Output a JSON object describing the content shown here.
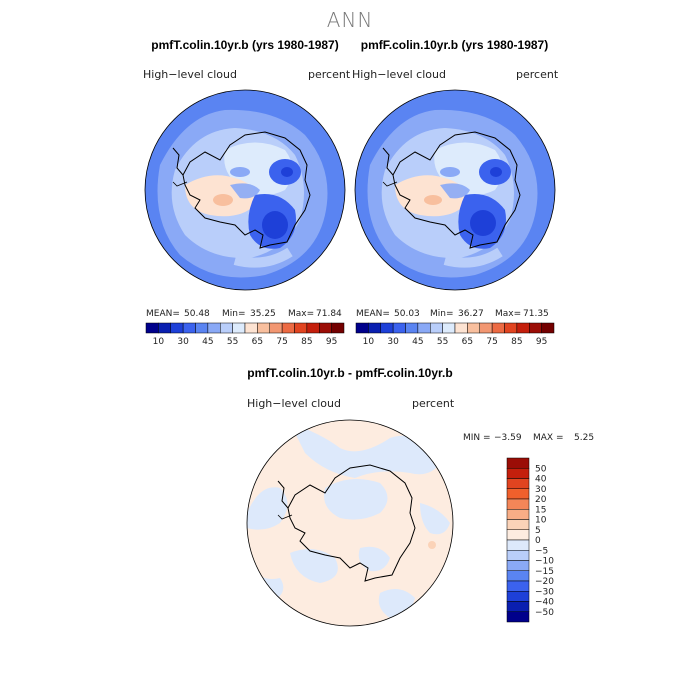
{
  "title": "ANN",
  "panels": [
    {
      "subtitle": "pmfT.colin.10yr.b (yrs 1980-1987)",
      "left_label": "High−level  cloud",
      "right_label": "percent",
      "mean_label": "MEAN=",
      "mean": "50.48",
      "min_label": "Min=",
      "min": "35.25",
      "max_label": "Max=",
      "max": "71.84"
    },
    {
      "subtitle": "pmfF.colin.10yr.b (yrs 1980-1987)",
      "left_label": "High−level  cloud",
      "right_label": "percent",
      "mean_label": "MEAN=",
      "mean": "50.03",
      "min_label": "Min=",
      "min": "36.27",
      "max_label": "Max=",
      "max": "71.35"
    }
  ],
  "diff_panel": {
    "subtitle": "pmfT.colin.10yr.b - pmfF.colin.10yr.b",
    "left_label": "High−level  cloud",
    "right_label": "percent",
    "min_label": "MIN =",
    "min": "−3.59",
    "max_label": "MAX =",
    "max": "5.25"
  },
  "chart_data": [
    {
      "type": "heatmap",
      "projection": "south-polar stereographic",
      "title": "pmfT.colin.10yr.b (yrs 1980-1987)",
      "variable": "High-level cloud",
      "units": "percent",
      "stats": {
        "mean": 50.48,
        "min": 35.25,
        "max": 71.84
      },
      "colorbar_levels": [
        10,
        20,
        30,
        40,
        45,
        50,
        55,
        60,
        65,
        70,
        75,
        80,
        85,
        90,
        95
      ],
      "colorbar_tick_labels": [
        "10",
        "30",
        "45",
        "55",
        "65",
        "75",
        "85",
        "95"
      ],
      "colorbar_colors": [
        "#00008b",
        "#0a1fb0",
        "#1e40d8",
        "#3b62ee",
        "#5a84f2",
        "#8aa9f6",
        "#b9cefa",
        "#ddebfc",
        "#fde3d2",
        "#f8bf9e",
        "#f29772",
        "#ec6a43",
        "#e14420",
        "#c41f0c",
        "#9b0d06",
        "#730000"
      ]
    },
    {
      "type": "heatmap",
      "projection": "south-polar stereographic",
      "title": "pmfF.colin.10yr.b (yrs 1980-1987)",
      "variable": "High-level cloud",
      "units": "percent",
      "stats": {
        "mean": 50.03,
        "min": 36.27,
        "max": 71.35
      },
      "colorbar_levels": [
        10,
        20,
        30,
        40,
        45,
        50,
        55,
        60,
        65,
        70,
        75,
        80,
        85,
        90,
        95
      ],
      "colorbar_tick_labels": [
        "10",
        "30",
        "45",
        "55",
        "65",
        "75",
        "85",
        "95"
      ],
      "colorbar_colors": [
        "#00008b",
        "#0a1fb0",
        "#1e40d8",
        "#3b62ee",
        "#5a84f2",
        "#8aa9f6",
        "#b9cefa",
        "#ddebfc",
        "#fde3d2",
        "#f8bf9e",
        "#f29772",
        "#ec6a43",
        "#e14420",
        "#c41f0c",
        "#9b0d06",
        "#730000"
      ]
    },
    {
      "type": "heatmap",
      "projection": "south-polar stereographic",
      "title": "pmfT.colin.10yr.b - pmfF.colin.10yr.b",
      "variable": "High-level cloud",
      "units": "percent",
      "stats": {
        "min": -3.59,
        "max": 5.25
      },
      "colorbar_tick_labels": [
        "50",
        "40",
        "30",
        "20",
        "15",
        "10",
        "5",
        "0",
        "−5",
        "−10",
        "−15",
        "−20",
        "−30",
        "−40",
        "−50"
      ],
      "colorbar_colors": [
        "#9b0d06",
        "#c41f0c",
        "#e14420",
        "#f0602c",
        "#f48658",
        "#f8ad86",
        "#fbd3b8",
        "#fdece0",
        "#dde9fb",
        "#b9cefa",
        "#8aa9f6",
        "#5a84f2",
        "#3b62ee",
        "#1e40d8",
        "#0a1fb0",
        "#00008b"
      ]
    }
  ]
}
